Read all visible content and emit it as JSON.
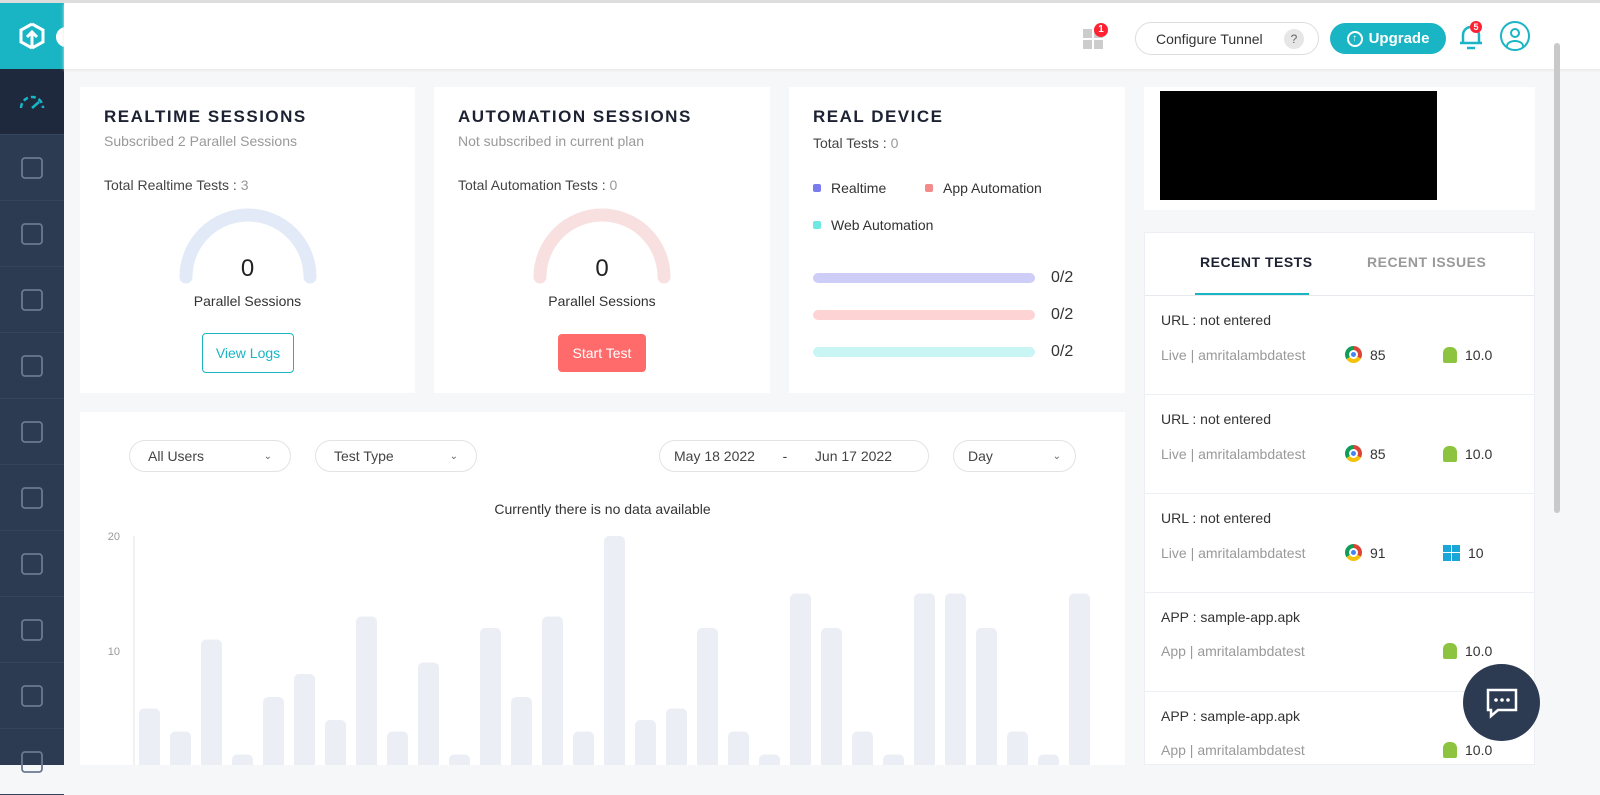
{
  "header": {
    "apps_badge": "1",
    "configure_tunnel": "Configure Tunnel",
    "help": "?",
    "upgrade": "Upgrade",
    "notif_badge": "5"
  },
  "sidebar": {
    "items": [
      "dashboard-icon",
      "history-icon",
      "realtime-device-icon",
      "automation-robot-icon",
      "lightning-icon",
      "screenshots-icon",
      "visual-ui-icon",
      "app-box-icon",
      "bug-icon",
      "comparison-icon",
      "folder-icon"
    ]
  },
  "realtime": {
    "title": "REALTIME SESSIONS",
    "subtitle": "Subscribed 2 Parallel Sessions",
    "total_label": "Total Realtime Tests : ",
    "total": "3",
    "gauge_value": "0",
    "gauge_label": "Parallel Sessions",
    "button": "View Logs"
  },
  "automation": {
    "title": "AUTOMATION SESSIONS",
    "subtitle": "Not subscribed in current plan",
    "total_label": "Total Automation Tests : ",
    "total": "0",
    "gauge_value": "0",
    "gauge_label": "Parallel Sessions",
    "button": "Start Test"
  },
  "real_device": {
    "title": "REAL DEVICE",
    "total_label": "Total Tests : ",
    "total": "0",
    "legend": [
      {
        "label": "Realtime",
        "color": "#7b7bf0"
      },
      {
        "label": "App Automation",
        "color": "#f48a8a"
      },
      {
        "label": "Web Automation",
        "color": "#6ee8e2"
      }
    ],
    "bars": [
      {
        "value": "0/2",
        "color": "#cdcdf7"
      },
      {
        "value": "0/2",
        "color": "#fdd3d3"
      },
      {
        "value": "0/2",
        "color": "#c9f6f4"
      }
    ]
  },
  "filters": {
    "users": "All Users",
    "test_type": "Test Type",
    "date_from": "May 18 2022",
    "date_sep": "-",
    "date_to": "Jun 17 2022",
    "granularity": "Day"
  },
  "chart_data": {
    "type": "bar",
    "title": "Currently there is no data available",
    "ylim": [
      0,
      20
    ],
    "yticks": [
      "20",
      "10"
    ],
    "values": [
      5,
      3,
      11,
      1,
      6,
      8,
      4,
      13,
      3,
      9,
      1,
      12,
      6,
      13,
      3,
      20,
      4,
      5,
      12,
      3,
      1,
      15,
      12,
      3,
      1,
      15,
      15,
      12,
      3,
      1,
      15
    ],
    "color": "#ebeff5"
  },
  "recent": {
    "tabs": [
      "RECENT TESTS",
      "RECENT ISSUES"
    ],
    "items": [
      {
        "title": "URL : not entered",
        "meta": "Live | amritalambdatest",
        "browser": "85",
        "os": "android",
        "os_ver": "10.0"
      },
      {
        "title": "URL : not entered",
        "meta": "Live | amritalambdatest",
        "browser": "85",
        "os": "android",
        "os_ver": "10.0"
      },
      {
        "title": "URL : not entered",
        "meta": "Live | amritalambdatest",
        "browser": "91",
        "os": "windows",
        "os_ver": "10"
      },
      {
        "title": "APP : sample-app.apk",
        "meta": "App | amritalambdatest",
        "browser": "",
        "os": "android",
        "os_ver": "10.0"
      },
      {
        "title": "APP : sample-app.apk",
        "meta": "App | amritalambdatest",
        "browser": "",
        "os": "android",
        "os_ver": "10.0"
      }
    ]
  },
  "colors": {
    "accent": "#19b5c4",
    "sidebar": "#2c3a52",
    "danger": "#ff6b6b"
  }
}
